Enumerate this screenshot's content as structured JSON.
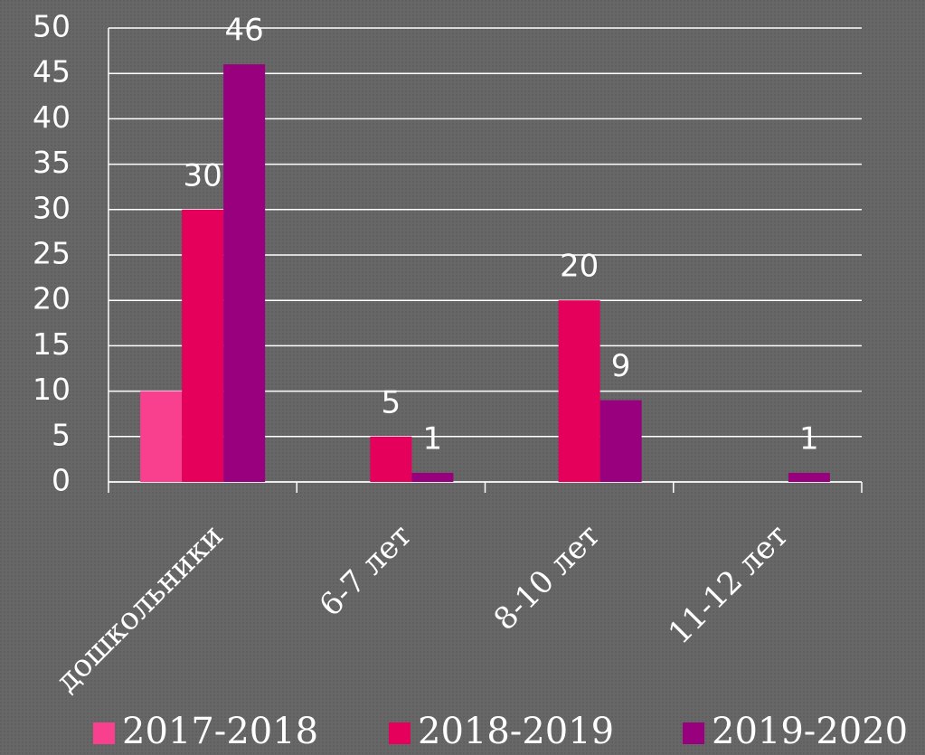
{
  "chart_data": {
    "type": "bar",
    "categories": [
      "дошкольники",
      "6-7 лет",
      "8-10 лет",
      "11-12 лет"
    ],
    "series": [
      {
        "name": "2017-2018",
        "color": "#f8408f",
        "values": [
          10,
          null,
          null,
          null
        ],
        "data_labels": false
      },
      {
        "name": "2018-2019",
        "color": "#e4005b",
        "values": [
          30,
          5,
          20,
          null
        ],
        "data_labels": true
      },
      {
        "name": "2019-2020",
        "color": "#99007e",
        "values": [
          46,
          1,
          9,
          1
        ],
        "data_labels": true
      }
    ],
    "ylim": [
      0,
      50
    ],
    "yticks": [
      0,
      5,
      10,
      15,
      20,
      25,
      30,
      35,
      40,
      45,
      50
    ],
    "grid": true,
    "legend": "bottom"
  }
}
